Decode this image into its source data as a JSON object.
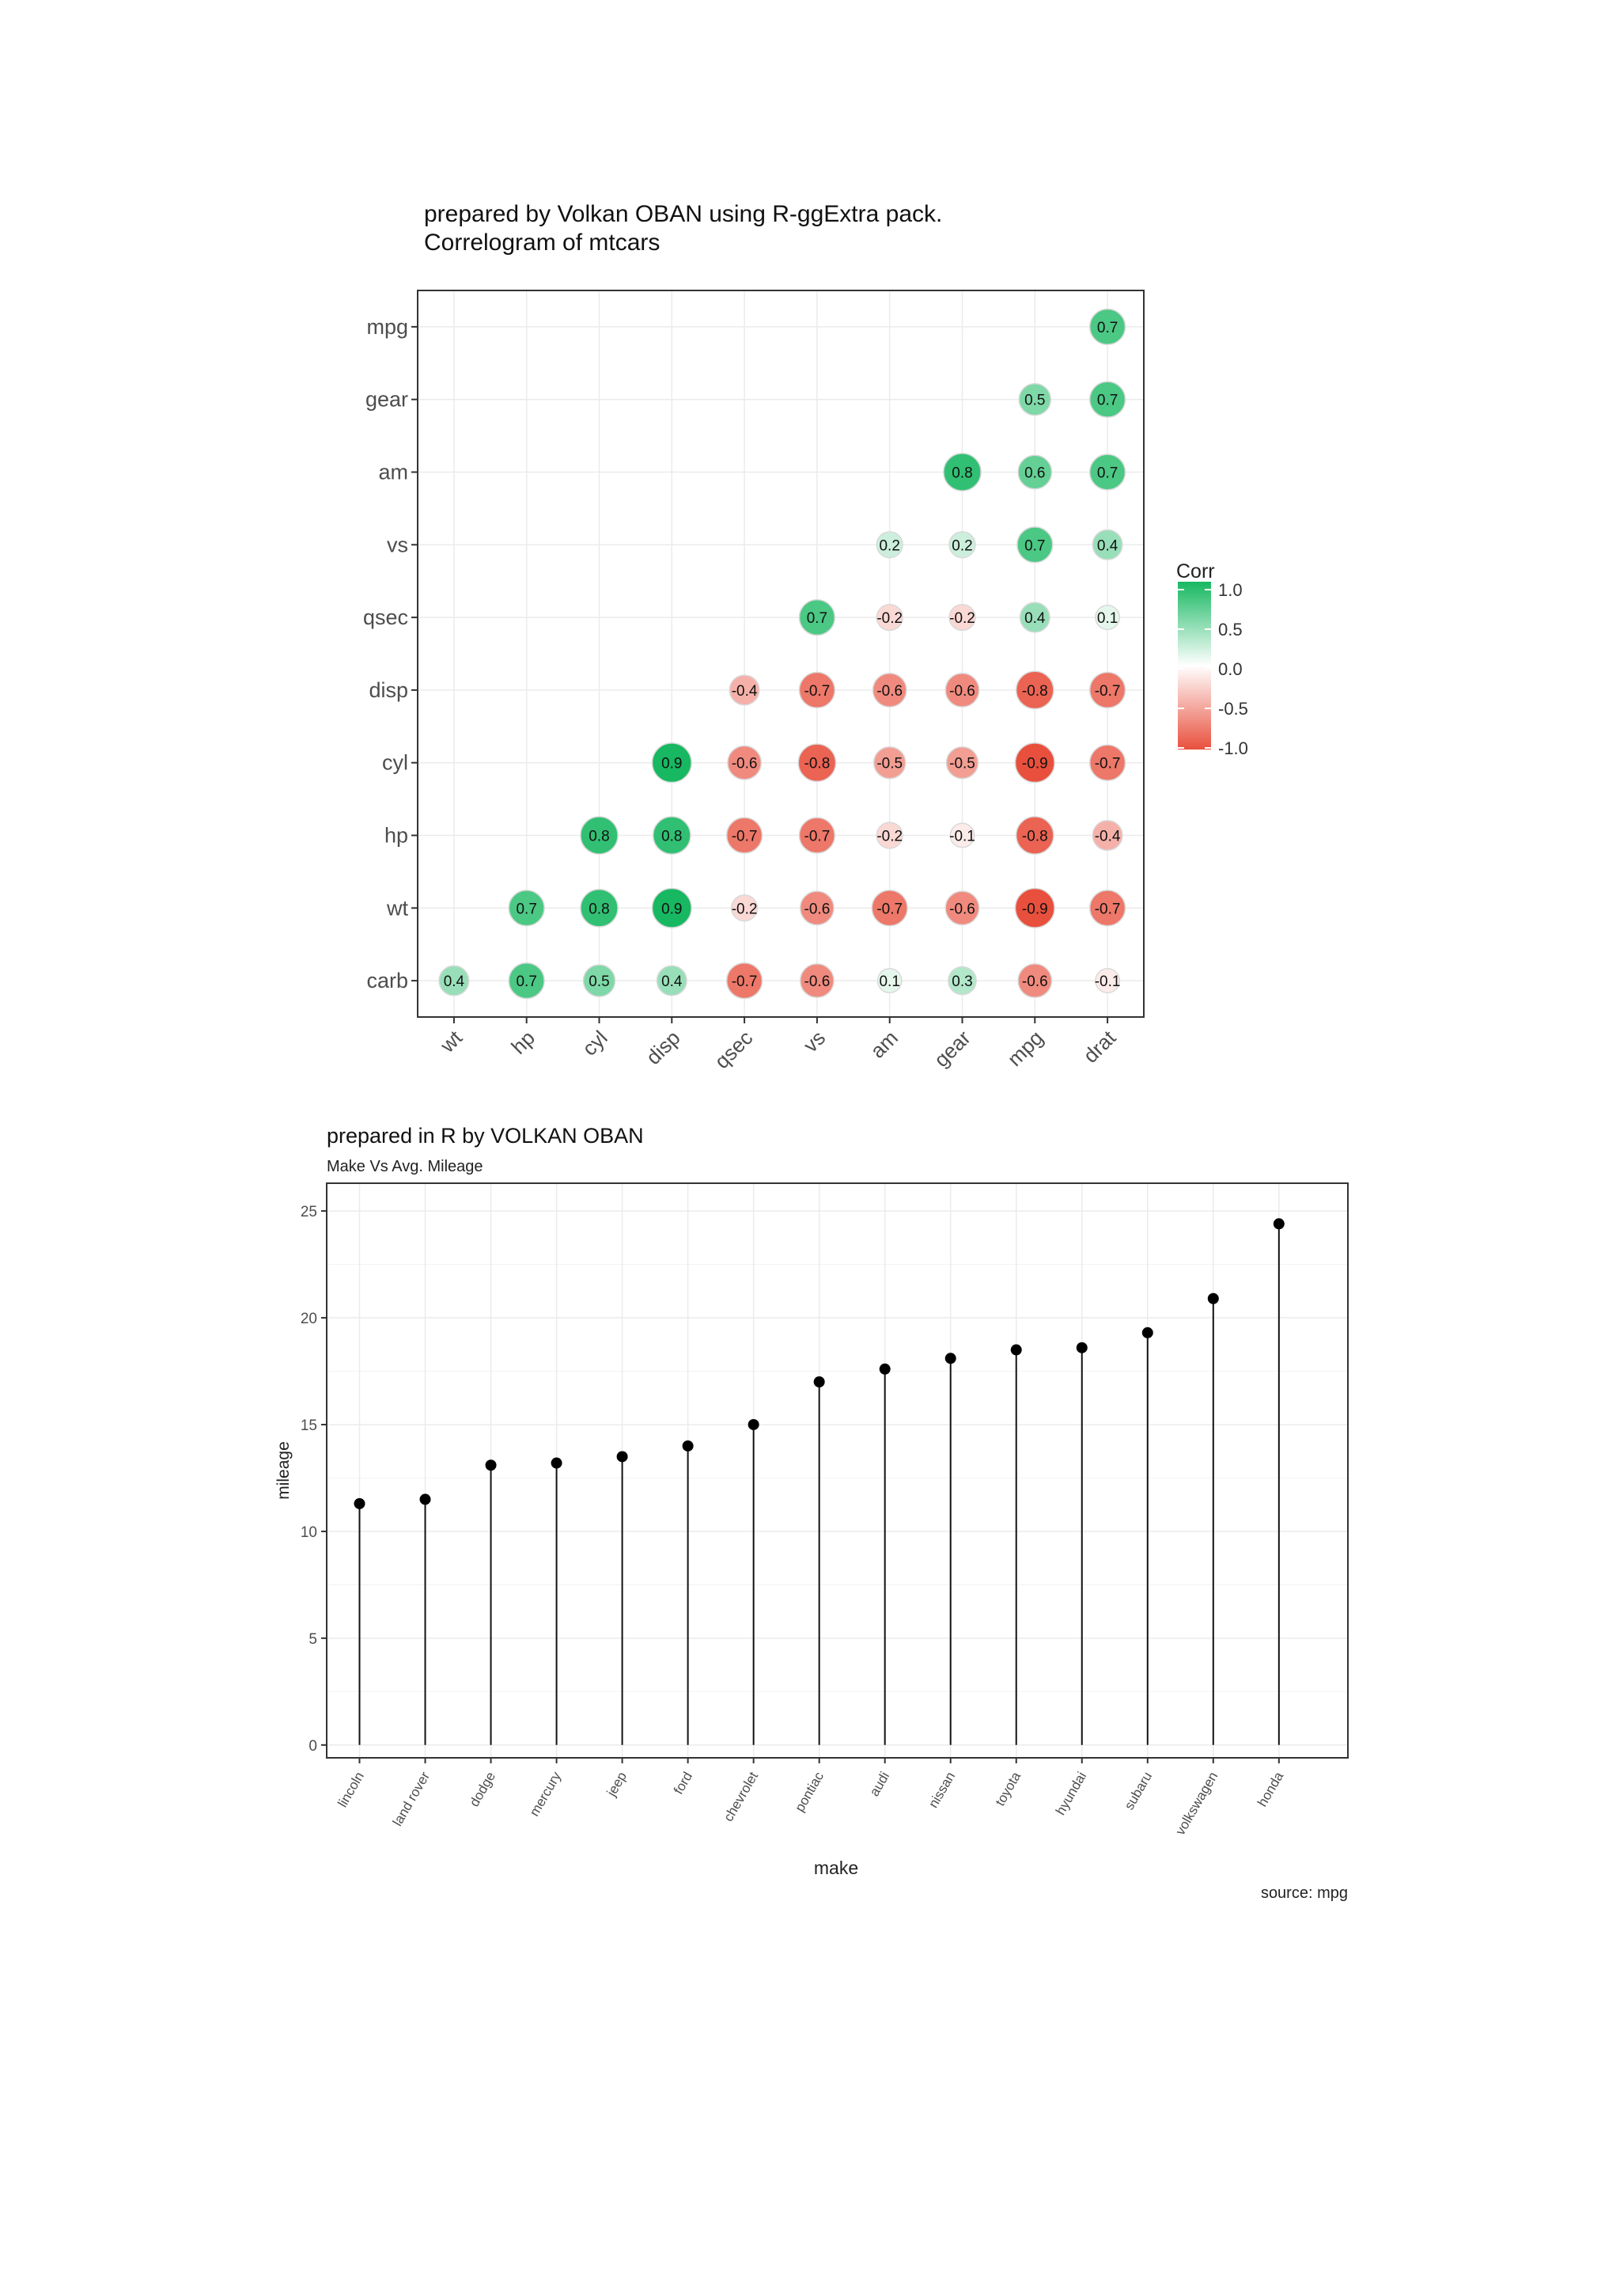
{
  "chart_data": [
    {
      "type": "heatmap",
      "title": "prepared by Volkan OBAN using R-ggExtra pack.",
      "subtitle": "Correlogram of mtcars",
      "x_categories": [
        "wt",
        "hp",
        "cyl",
        "disp",
        "qsec",
        "vs",
        "am",
        "gear",
        "mpg",
        "drat"
      ],
      "y_categories": [
        "carb",
        "wt",
        "hp",
        "cyl",
        "disp",
        "qsec",
        "vs",
        "am",
        "gear",
        "mpg"
      ],
      "legend": {
        "title": "Corr",
        "ticks": [
          "1.0",
          "0.5",
          "0.0",
          "-0.5",
          "-1.0"
        ],
        "placement": "right"
      },
      "colors": {
        "low": "#e8503d",
        "mid": "#ffffff",
        "high": "#17b861"
      },
      "grid": true,
      "cells": [
        {
          "x": "drat",
          "y": "mpg",
          "value": 0.7
        },
        {
          "x": "mpg",
          "y": "gear",
          "value": 0.5
        },
        {
          "x": "drat",
          "y": "gear",
          "value": 0.7
        },
        {
          "x": "gear",
          "y": "am",
          "value": 0.8
        },
        {
          "x": "mpg",
          "y": "am",
          "value": 0.6
        },
        {
          "x": "drat",
          "y": "am",
          "value": 0.7
        },
        {
          "x": "am",
          "y": "vs",
          "value": 0.2
        },
        {
          "x": "gear",
          "y": "vs",
          "value": 0.2
        },
        {
          "x": "mpg",
          "y": "vs",
          "value": 0.7
        },
        {
          "x": "drat",
          "y": "vs",
          "value": 0.4
        },
        {
          "x": "vs",
          "y": "qsec",
          "value": 0.7
        },
        {
          "x": "am",
          "y": "qsec",
          "value": -0.2
        },
        {
          "x": "gear",
          "y": "qsec",
          "value": -0.2
        },
        {
          "x": "mpg",
          "y": "qsec",
          "value": 0.4
        },
        {
          "x": "drat",
          "y": "qsec",
          "value": 0.1
        },
        {
          "x": "qsec",
          "y": "disp",
          "value": -0.4
        },
        {
          "x": "vs",
          "y": "disp",
          "value": -0.7
        },
        {
          "x": "am",
          "y": "disp",
          "value": -0.6
        },
        {
          "x": "gear",
          "y": "disp",
          "value": -0.6
        },
        {
          "x": "mpg",
          "y": "disp",
          "value": -0.8
        },
        {
          "x": "drat",
          "y": "disp",
          "value": -0.7
        },
        {
          "x": "disp",
          "y": "cyl",
          "value": 0.9
        },
        {
          "x": "qsec",
          "y": "cyl",
          "value": -0.6
        },
        {
          "x": "vs",
          "y": "cyl",
          "value": -0.8
        },
        {
          "x": "am",
          "y": "cyl",
          "value": -0.5
        },
        {
          "x": "gear",
          "y": "cyl",
          "value": -0.5
        },
        {
          "x": "mpg",
          "y": "cyl",
          "value": -0.9
        },
        {
          "x": "drat",
          "y": "cyl",
          "value": -0.7
        },
        {
          "x": "cyl",
          "y": "hp",
          "value": 0.8
        },
        {
          "x": "disp",
          "y": "hp",
          "value": 0.8
        },
        {
          "x": "qsec",
          "y": "hp",
          "value": -0.7
        },
        {
          "x": "vs",
          "y": "hp",
          "value": -0.7
        },
        {
          "x": "am",
          "y": "hp",
          "value": -0.2
        },
        {
          "x": "gear",
          "y": "hp",
          "value": -0.1
        },
        {
          "x": "mpg",
          "y": "hp",
          "value": -0.8
        },
        {
          "x": "drat",
          "y": "hp",
          "value": -0.4
        },
        {
          "x": "hp",
          "y": "wt",
          "value": 0.7
        },
        {
          "x": "cyl",
          "y": "wt",
          "value": 0.8
        },
        {
          "x": "disp",
          "y": "wt",
          "value": 0.9
        },
        {
          "x": "qsec",
          "y": "wt",
          "value": -0.2
        },
        {
          "x": "vs",
          "y": "wt",
          "value": -0.6
        },
        {
          "x": "am",
          "y": "wt",
          "value": -0.7
        },
        {
          "x": "gear",
          "y": "wt",
          "value": -0.6
        },
        {
          "x": "mpg",
          "y": "wt",
          "value": -0.9
        },
        {
          "x": "drat",
          "y": "wt",
          "value": -0.7
        },
        {
          "x": "wt",
          "y": "carb",
          "value": 0.4
        },
        {
          "x": "hp",
          "y": "carb",
          "value": 0.7
        },
        {
          "x": "cyl",
          "y": "carb",
          "value": 0.5
        },
        {
          "x": "disp",
          "y": "carb",
          "value": 0.4
        },
        {
          "x": "qsec",
          "y": "carb",
          "value": -0.7
        },
        {
          "x": "vs",
          "y": "carb",
          "value": -0.6
        },
        {
          "x": "am",
          "y": "carb",
          "value": 0.1
        },
        {
          "x": "gear",
          "y": "carb",
          "value": 0.3
        },
        {
          "x": "mpg",
          "y": "carb",
          "value": -0.6
        },
        {
          "x": "drat",
          "y": "carb",
          "value": -0.1
        }
      ]
    },
    {
      "type": "scatter",
      "title": "prepared in R by VOLKAN OBAN",
      "subtitle": "Make Vs Avg. Mileage",
      "caption": "source: mpg",
      "xlabel": "make",
      "ylabel": "mileage",
      "ylim": [
        0,
        25
      ],
      "yticks": [
        0,
        5,
        10,
        15,
        20,
        25
      ],
      "grid": true,
      "categories": [
        "lincoln",
        "land rover",
        "dodge",
        "mercury",
        "jeep",
        "ford",
        "chevrolet",
        "pontiac",
        "audi",
        "nissan",
        "toyota",
        "hyundai",
        "subaru",
        "volkswagen",
        "honda"
      ],
      "values": [
        11.3,
        11.5,
        13.1,
        13.2,
        13.5,
        14.0,
        15.0,
        17.0,
        17.6,
        18.1,
        18.5,
        18.6,
        19.3,
        20.9,
        24.4
      ]
    }
  ]
}
